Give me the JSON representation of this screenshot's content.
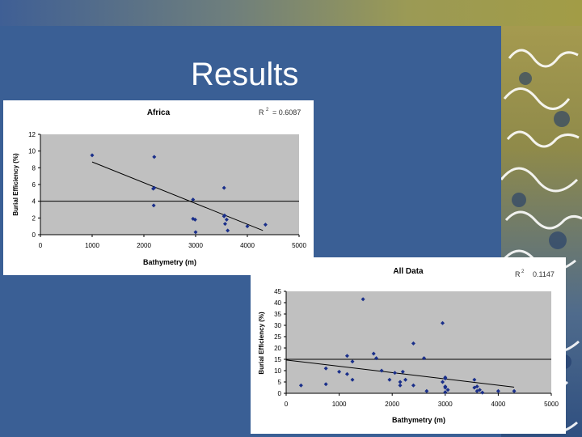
{
  "slide": {
    "title": "Results",
    "colors": {
      "background": "#3a5f95",
      "title": "#ffffff",
      "point": "#1a2f8a",
      "plot_area": "#c0c0c0"
    }
  },
  "chart_data": [
    {
      "type": "scatter",
      "title": "Africa",
      "r2_label": "R",
      "r2_value": "= 0.6087",
      "xlabel": "Bathymetry (m)",
      "ylabel": "Burial Efficiency (%)",
      "xlim": [
        0,
        5000
      ],
      "ylim": [
        0,
        12
      ],
      "xticks": [
        0,
        1000,
        2000,
        3000,
        4000,
        5000
      ],
      "yticks": [
        0,
        2,
        4,
        6,
        8,
        10,
        12
      ],
      "grid": false,
      "reference_line": 4,
      "trendline": {
        "x": [
          1000,
          4300
        ],
        "y": [
          8.7,
          0.5
        ]
      },
      "points": [
        [
          1000,
          9.5
        ],
        [
          2200,
          9.3
        ],
        [
          2200,
          5.6
        ],
        [
          2180,
          5.5
        ],
        [
          2190,
          3.5
        ],
        [
          2950,
          4.2
        ],
        [
          2950,
          1.9
        ],
        [
          2990,
          1.8
        ],
        [
          3000,
          0.3
        ],
        [
          3550,
          5.6
        ],
        [
          3550,
          2.2
        ],
        [
          3560,
          2.3
        ],
        [
          3570,
          1.3
        ],
        [
          3600,
          1.8
        ],
        [
          3620,
          0.5
        ],
        [
          4000,
          1.0
        ],
        [
          4350,
          1.2
        ]
      ]
    },
    {
      "type": "scatter",
      "title": "All Data",
      "r2_label": "R",
      "r2_value": "0.1147",
      "xlabel": "Bathymetry (m)",
      "ylabel": "Burial Efficiency (%)",
      "xlim": [
        0,
        5000
      ],
      "ylim": [
        0,
        45
      ],
      "xticks": [
        0,
        1000,
        2000,
        3000,
        4000,
        5000
      ],
      "yticks": [
        0,
        5,
        10,
        15,
        20,
        25,
        30,
        35,
        40,
        45
      ],
      "grid": false,
      "reference_line": 15,
      "trendline": {
        "x": [
          0,
          4300
        ],
        "y": [
          14.7,
          2.7
        ]
      },
      "points": [
        [
          280,
          3.5
        ],
        [
          750,
          11
        ],
        [
          750,
          4
        ],
        [
          1000,
          9.5
        ],
        [
          1150,
          8.5
        ],
        [
          1150,
          16.5
        ],
        [
          1250,
          14
        ],
        [
          1250,
          6
        ],
        [
          1450,
          41.5
        ],
        [
          1650,
          17.5
        ],
        [
          1700,
          15.5
        ],
        [
          1800,
          10
        ],
        [
          1950,
          6
        ],
        [
          2050,
          9
        ],
        [
          2150,
          5
        ],
        [
          2150,
          3.5
        ],
        [
          2200,
          9.5
        ],
        [
          2250,
          6
        ],
        [
          2400,
          22
        ],
        [
          2400,
          3.5
        ],
        [
          2600,
          15.5
        ],
        [
          2650,
          1
        ],
        [
          2950,
          31
        ],
        [
          3000,
          7
        ],
        [
          3000,
          6.5
        ],
        [
          2950,
          5
        ],
        [
          3000,
          2.5
        ],
        [
          3000,
          3
        ],
        [
          3050,
          1.5
        ],
        [
          3000,
          0.5
        ],
        [
          3550,
          6
        ],
        [
          3550,
          2.5
        ],
        [
          3600,
          3
        ],
        [
          3600,
          1
        ],
        [
          3650,
          1.5
        ],
        [
          3700,
          0.3
        ],
        [
          4000,
          1
        ],
        [
          4300,
          1
        ]
      ]
    }
  ]
}
